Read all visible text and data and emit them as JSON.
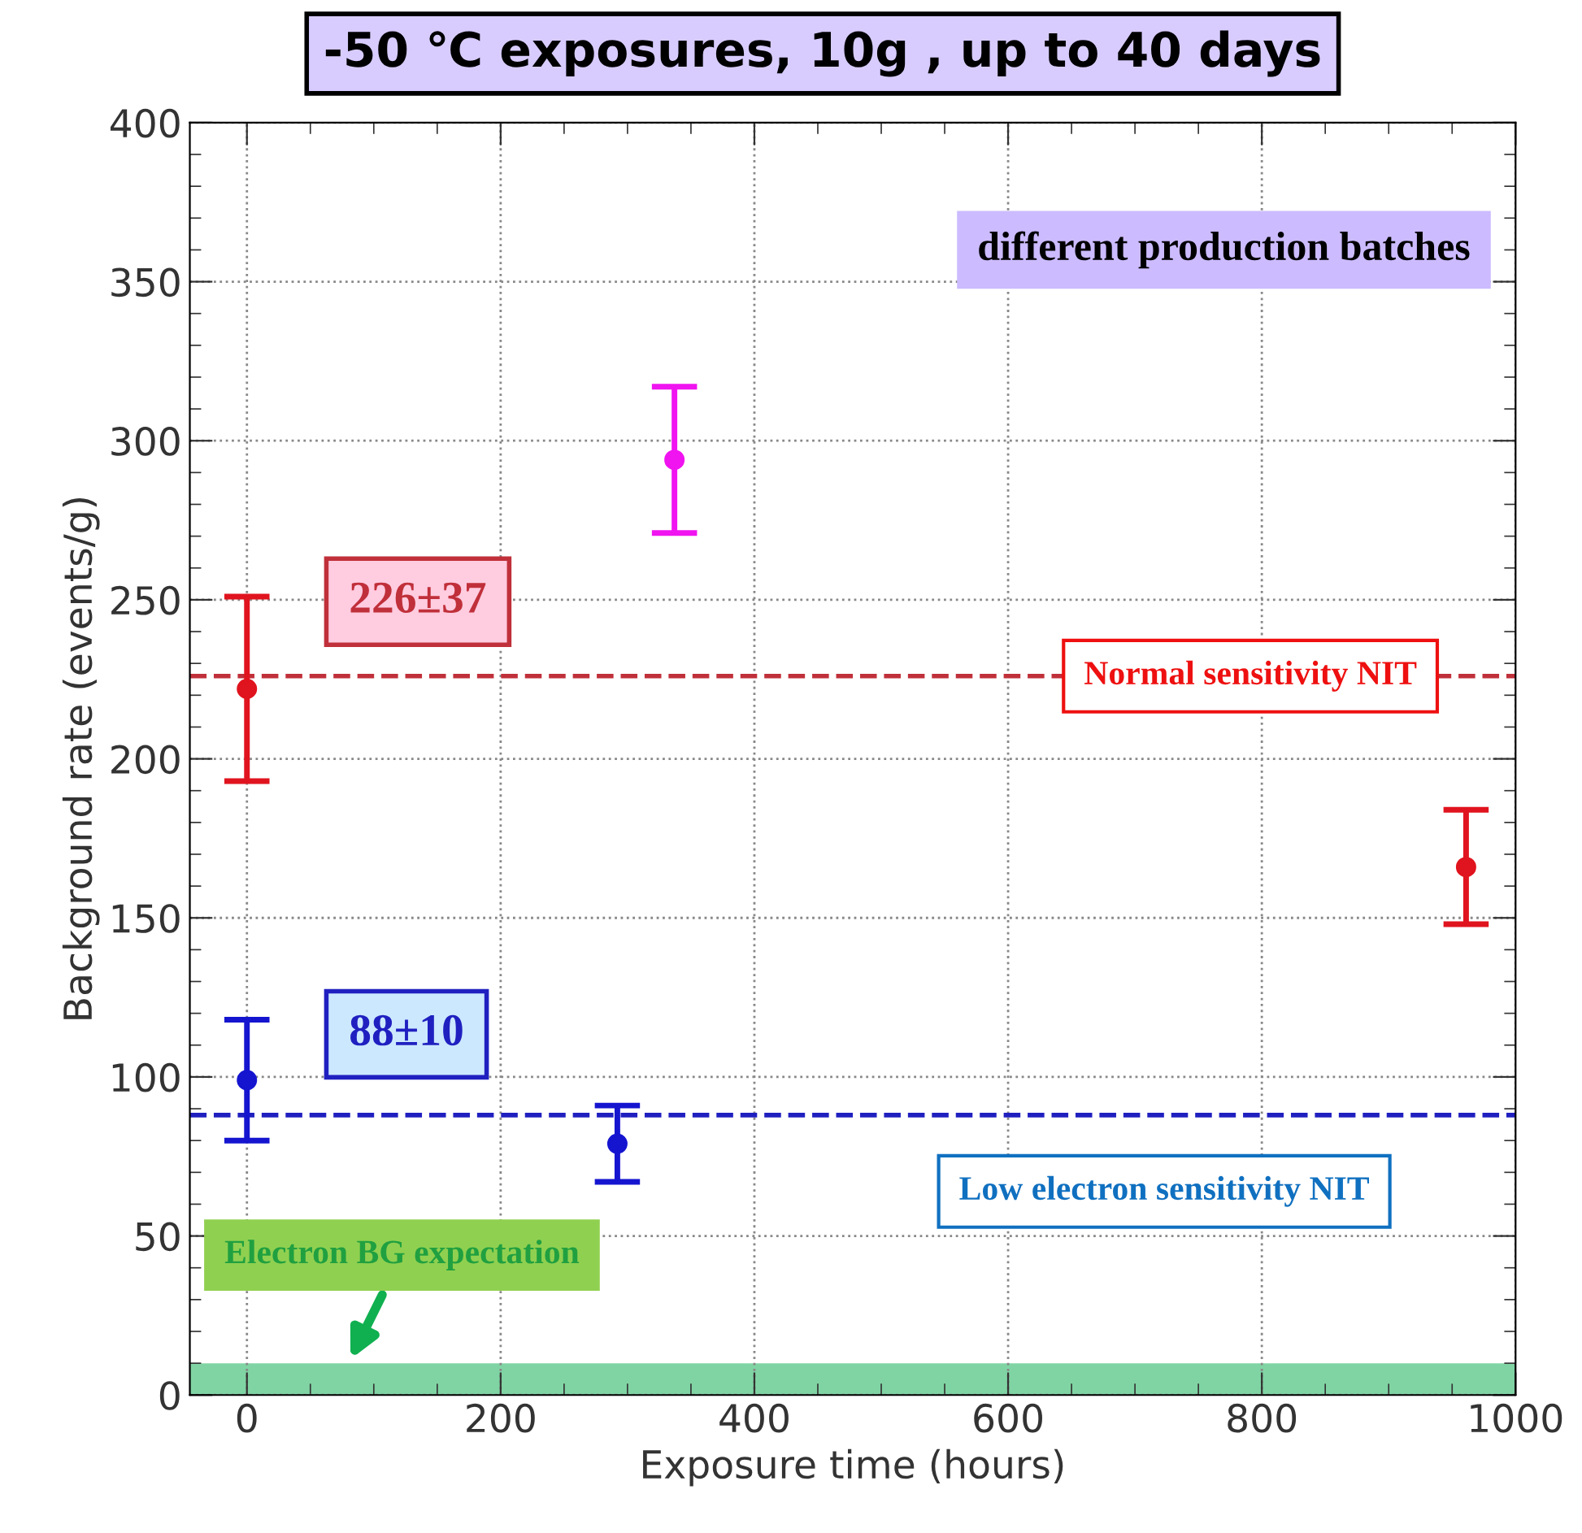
{
  "chart_data": {
    "type": "scatter",
    "title": "-50 ℃ exposures, 10g , up to 40 days",
    "xlabel": "Exposure time (hours)",
    "ylabel": "Background rate (events/g)",
    "series": [
      {
        "color": "#1515d0",
        "x": [
          0,
          292
        ],
        "values": [
          99,
          79
        ],
        "errors": [
          19,
          12
        ]
      },
      {
        "color": "#e0141e",
        "x": [
          0,
          961
        ],
        "values": [
          222,
          166
        ],
        "errors": [
          29,
          18
        ]
      },
      {
        "color": "#f014f0",
        "x": [
          337
        ],
        "values": [
          294
        ],
        "errors": [
          23
        ]
      }
    ],
    "xlim": [
      -45,
      1000
    ],
    "ylim": [
      0,
      400
    ],
    "xticks": [
      0,
      200,
      400,
      600,
      800,
      1000
    ],
    "yticks": [
      0,
      50,
      100,
      150,
      200,
      250,
      300,
      350,
      400
    ],
    "grid": true,
    "marker": "circle",
    "ref_lines": [
      {
        "axis": "y",
        "value": 226,
        "label": "226±37",
        "color": "#c0303a",
        "line_style": "dashed"
      },
      {
        "axis": "y",
        "value": 88,
        "label": "88±10",
        "color": "#2020c0",
        "line_style": "dashed"
      }
    ],
    "bands": [
      {
        "axis": "y",
        "from": 0,
        "to": 10,
        "label": "Electron BG expectation",
        "color": "#80d4a4"
      }
    ],
    "annotations": [
      "different production batches",
      "Normal sensitivity NIT",
      "Low electron sensitivity NIT"
    ]
  }
}
